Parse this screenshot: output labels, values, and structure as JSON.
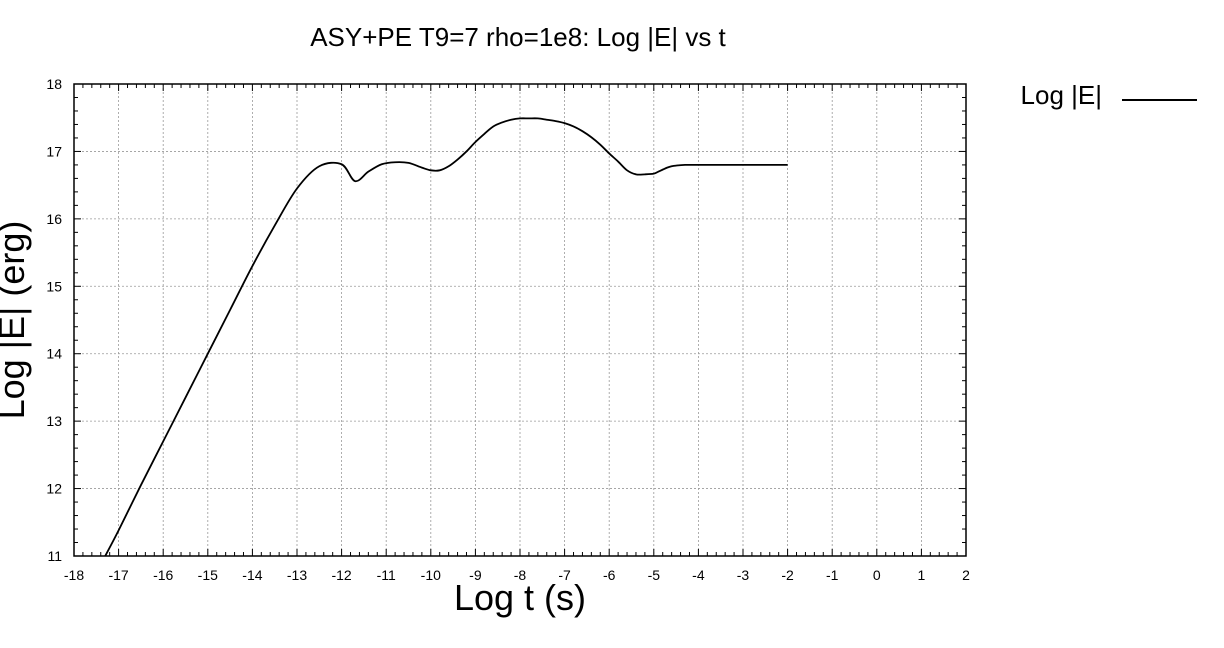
{
  "chart_data": {
    "type": "line",
    "title": "ASY+PE T9=7 rho=1e8: Log |E| vs t",
    "xlabel": "Log t (s)",
    "ylabel": "Log |E| (erg)",
    "xlim": [
      -18,
      2
    ],
    "ylim": [
      11,
      18
    ],
    "xticks": [
      -18,
      -17,
      -16,
      -15,
      -14,
      -13,
      -12,
      -11,
      -10,
      -9,
      -8,
      -7,
      -6,
      -5,
      -4,
      -3,
      -2,
      -1,
      0,
      1,
      2
    ],
    "yticks": [
      11,
      12,
      13,
      14,
      15,
      16,
      17,
      18
    ],
    "grid": true,
    "legend_position": "top-right-outside",
    "series": [
      {
        "name": "Log |E|",
        "color": "#000000",
        "x": [
          -17.3,
          -17.0,
          -16.5,
          -16.0,
          -15.5,
          -15.0,
          -14.5,
          -14.0,
          -13.5,
          -13.0,
          -12.5,
          -12.0,
          -11.7,
          -11.4,
          -11.1,
          -10.8,
          -10.5,
          -10.2,
          -10.0,
          -9.8,
          -9.6,
          -9.4,
          -9.2,
          -9.0,
          -8.8,
          -8.6,
          -8.4,
          -8.2,
          -8.0,
          -7.8,
          -7.6,
          -7.4,
          -7.2,
          -7.0,
          -6.8,
          -6.6,
          -6.4,
          -6.2,
          -6.0,
          -5.8,
          -5.6,
          -5.4,
          -5.2,
          -5.0,
          -4.9,
          -4.8,
          -4.7,
          -4.6,
          -4.5,
          -4.3,
          -4.0,
          -3.5,
          -3.0,
          -2.5,
          -2.0
        ],
        "y": [
          11.0,
          11.38,
          12.05,
          12.7,
          13.35,
          14.0,
          14.65,
          15.3,
          15.9,
          16.45,
          16.78,
          16.81,
          16.56,
          16.7,
          16.81,
          16.84,
          16.83,
          16.76,
          16.72,
          16.72,
          16.78,
          16.88,
          17.0,
          17.14,
          17.26,
          17.37,
          17.43,
          17.47,
          17.49,
          17.49,
          17.49,
          17.47,
          17.45,
          17.42,
          17.37,
          17.3,
          17.21,
          17.1,
          16.97,
          16.85,
          16.72,
          16.66,
          16.66,
          16.67,
          16.7,
          16.73,
          16.76,
          16.78,
          16.79,
          16.8,
          16.8,
          16.8,
          16.8,
          16.8,
          16.8
        ]
      }
    ]
  }
}
